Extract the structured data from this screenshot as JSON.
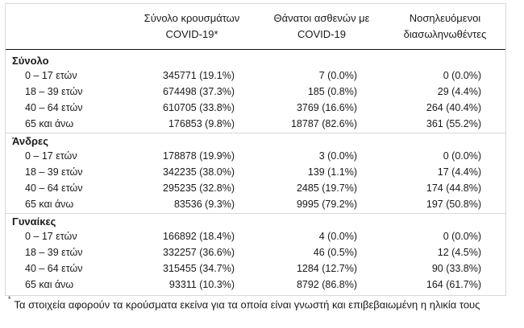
{
  "headers": {
    "col1_line1": "Σύνολο κρουσμάτων",
    "col1_line2": "COVID-19*",
    "col2_line1": "Θάνατοι ασθενών με",
    "col2_line2": "COVID-19",
    "col3_line1": "Νοσηλευόμενοι",
    "col3_line2": "διασωληνωθέντες"
  },
  "groups": [
    {
      "title": "Σύνολο",
      "rows": [
        {
          "label": "0 – 17 ετών",
          "cases": "345771 (19.1%)",
          "deaths": "7 (0.0%)",
          "intubated": "0 (0.0%)"
        },
        {
          "label": "18 – 39 ετών",
          "cases": "674498 (37.3%)",
          "deaths": "185 (0.8%)",
          "intubated": "29 (4.4%)"
        },
        {
          "label": "40 – 64 ετών",
          "cases": "610705 (33.8%)",
          "deaths": "3769 (16.6%)",
          "intubated": "264 (40.4%)"
        },
        {
          "label": "65 και άνω",
          "cases": "176853 (9.8%)",
          "deaths": "18787 (82.6%)",
          "intubated": "361 (55.2%)"
        }
      ]
    },
    {
      "title": "Άνδρες",
      "rows": [
        {
          "label": "0 – 17 ετών",
          "cases": "178878 (19.9%)",
          "deaths": "3 (0.0%)",
          "intubated": "0 (0.0%)"
        },
        {
          "label": "18 – 39 ετών",
          "cases": "342235 (38.0%)",
          "deaths": "139 (1.1%)",
          "intubated": "17 (4.4%)"
        },
        {
          "label": "40 – 64 ετών",
          "cases": "295235 (32.8%)",
          "deaths": "2485 (19.7%)",
          "intubated": "174 (44.8%)"
        },
        {
          "label": "65 και άνω",
          "cases": "83536 (9.3%)",
          "deaths": "9995 (79.2%)",
          "intubated": "197 (50.8%)"
        }
      ]
    },
    {
      "title": "Γυναίκες",
      "rows": [
        {
          "label": "0 – 17 ετών",
          "cases": "166892 (18.4%)",
          "deaths": "4 (0.0%)",
          "intubated": "0 (0.0%)"
        },
        {
          "label": "18 – 39 ετών",
          "cases": "332257 (36.6%)",
          "deaths": "46 (0.5%)",
          "intubated": "12 (4.5%)"
        },
        {
          "label": "40 – 64 ετών",
          "cases": "315455 (34.7%)",
          "deaths": "1284 (12.7%)",
          "intubated": "90 (33.8%)"
        },
        {
          "label": "65 και άνω",
          "cases": "93311 (10.3%)",
          "deaths": "8792 (86.8%)",
          "intubated": "164 (61.7%)"
        }
      ]
    }
  ],
  "footnote": {
    "marker": "*",
    "text": "Τα στοιχεία αφορούν τα κρούσματα εκείνα για τα οποία είναι γνωστή και επιβεβαιωμένη η ηλικία τους"
  }
}
